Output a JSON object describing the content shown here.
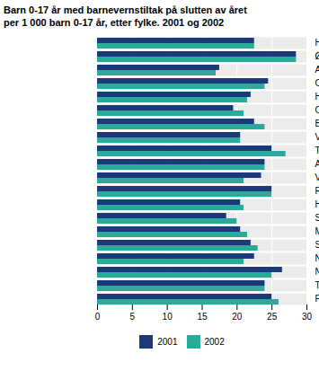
{
  "chart_data": {
    "type": "bar",
    "orientation": "horizontal",
    "title": "Barn 0-17 år med barnevernstiltak på slutten av året",
    "subtitle": "per 1 000 barn 0-17 år, etter fylke. 2001 og 2002",
    "categories": [
      "Hele landet",
      "Østfold",
      "Akershus",
      "Oslo",
      "Hedmark",
      "Oppland",
      "Buskerud",
      "Vestfold",
      "Telemark",
      "Aust-Agder",
      "Vest-Agder",
      "Rogaland",
      "Hordaland",
      "Sogn og Fjordane",
      "Møre og Romsdal",
      "Sør-Trøndelag",
      "Nord-Trøndelag",
      "Nordland",
      "Troms",
      "Finnmark"
    ],
    "series": [
      {
        "name": "2001",
        "color": "#1a3a7c",
        "values": [
          22.5,
          28.5,
          17.5,
          24.5,
          22.0,
          19.5,
          22.5,
          20.5,
          25.0,
          24.0,
          23.5,
          25.0,
          20.5,
          18.5,
          20.5,
          22.0,
          22.5,
          26.5,
          24.0,
          25.0
        ]
      },
      {
        "name": "2002",
        "color": "#2aaa98",
        "values": [
          22.5,
          28.5,
          17.0,
          24.0,
          21.5,
          21.0,
          24.0,
          20.5,
          27.0,
          24.0,
          21.0,
          25.0,
          21.0,
          20.0,
          21.5,
          23.0,
          21.0,
          25.0,
          24.0,
          26.0
        ]
      }
    ],
    "xlim": [
      0,
      30
    ],
    "xticks": [
      0,
      5,
      10,
      15,
      20,
      25,
      30
    ],
    "grid": true,
    "legend": "bottom"
  }
}
